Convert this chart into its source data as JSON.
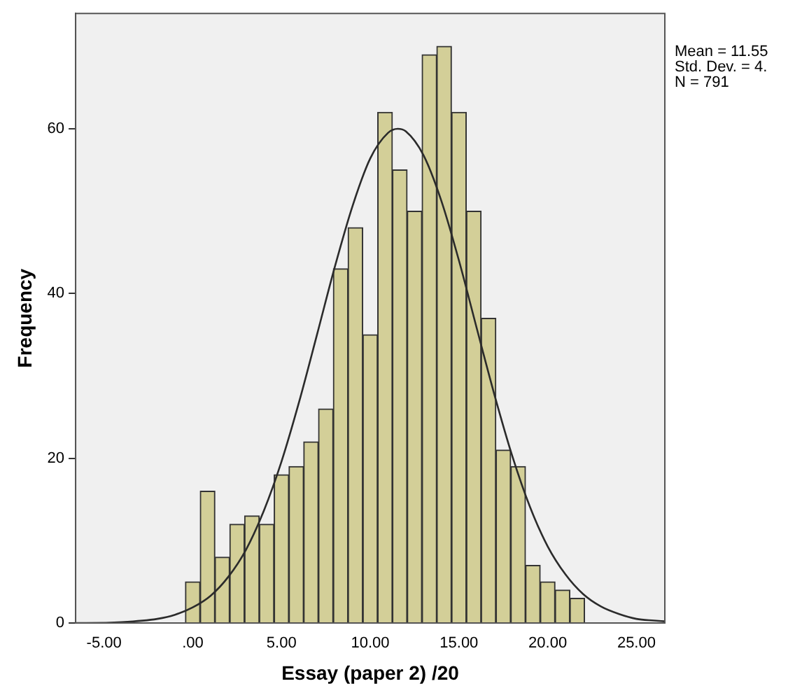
{
  "chart_data": {
    "type": "histogram",
    "xlabel": "Essay (paper 2) /20",
    "ylabel": "Frequency",
    "bins": [
      -0.42,
      0.42,
      1.25,
      2.08,
      2.92,
      3.75,
      4.58,
      5.42,
      6.25,
      7.08,
      7.92,
      8.75,
      9.58,
      10.42,
      11.25,
      12.08,
      12.92,
      13.75,
      14.58,
      15.42,
      16.25,
      17.08,
      17.92,
      18.75,
      19.58,
      20.42,
      21.25,
      22.08
    ],
    "values": [
      5,
      16,
      8,
      12,
      13,
      12,
      18,
      19,
      22,
      26,
      43,
      48,
      35,
      62,
      55,
      50,
      69,
      70,
      62,
      50,
      37,
      21,
      19,
      7,
      5,
      4,
      3
    ],
    "color": "#d3cf98",
    "series": [
      {
        "type": "line",
        "color": "#2b2b2b",
        "marker": "none",
        "x": [
          -6.6,
          -6,
          -4,
          -2,
          -1,
          0,
          1,
          2,
          3,
          4,
          5,
          6,
          7,
          8,
          9,
          10,
          11,
          11.55,
          12,
          13,
          14,
          15,
          16,
          17,
          18,
          19,
          20,
          21,
          22,
          23,
          24,
          25,
          26,
          26.6
        ],
        "values": [
          0,
          0,
          0.1,
          0.5,
          1,
          1.9,
          3.3,
          5.6,
          8.9,
          13.6,
          19.6,
          26.9,
          35,
          43.2,
          50.6,
          56.4,
          59.5,
          60,
          59.7,
          56.8,
          51.3,
          44,
          35.8,
          27.7,
          20.3,
          14.1,
          9.3,
          5.9,
          3.5,
          2,
          1.1,
          0.5,
          0.3,
          0.2
        ]
      }
    ],
    "xlim": [
      -6.6,
      26.6
    ],
    "ylim": [
      0,
      74
    ],
    "xticks": [
      {
        "value": -5,
        "label": "-5.00"
      },
      {
        "value": 0,
        "label": ".00"
      },
      {
        "value": 5,
        "label": "5.00"
      },
      {
        "value": 10,
        "label": "10.00"
      },
      {
        "value": 15,
        "label": "15.00"
      },
      {
        "value": 20,
        "label": "20.00"
      },
      {
        "value": 25,
        "label": "25.00"
      }
    ],
    "yticks": [
      0,
      20,
      40,
      60
    ],
    "annotations": [
      "Mean = 11.55",
      "Std. Dev. = 4.",
      "N = 791"
    ]
  }
}
